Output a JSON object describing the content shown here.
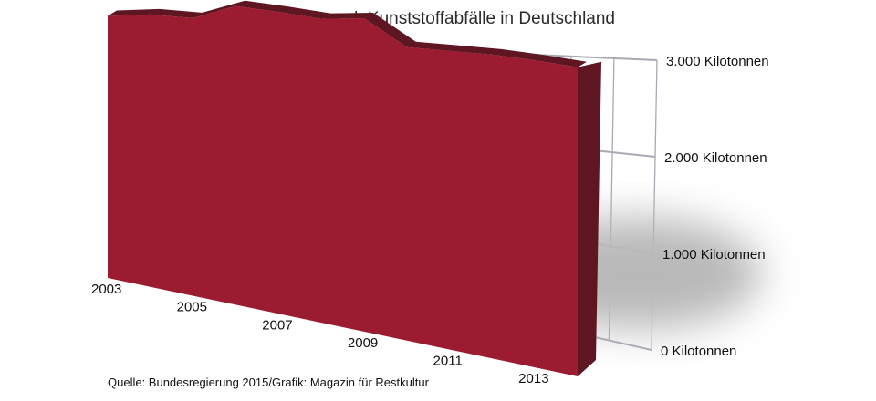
{
  "chart_data": {
    "type": "area",
    "title": "Tenzenz: Steigend. Kunststoffabfälle in Deutschland",
    "x": [
      2003,
      2004,
      2005,
      2006,
      2007,
      2008,
      2009,
      2010,
      2011,
      2012,
      2013,
      2014
    ],
    "series": [
      {
        "values": [
          2500,
          2600,
          2650,
          2850,
          2880,
          2900,
          2990,
          2800,
          2850,
          2900,
          2930,
          2950
        ]
      }
    ],
    "x_tick_labels": [
      "2003",
      "2005",
      "2007",
      "2009",
      "2011",
      "2013"
    ],
    "y_tick_labels": [
      "0 Kilotonnen",
      "1.000 Kilotonnen",
      "2.000 Kilotonnen",
      "3.000 Kilotonnen"
    ],
    "ylim": [
      0,
      3000
    ],
    "grid": true,
    "colors": {
      "front": "#9b1c31",
      "side": "#5e1622",
      "grid": "#a9a9b4",
      "shadow": "#b9b9b9"
    }
  },
  "source": "Quelle: Bundesregierung 2015/Grafik: Magazin für Restkultur"
}
